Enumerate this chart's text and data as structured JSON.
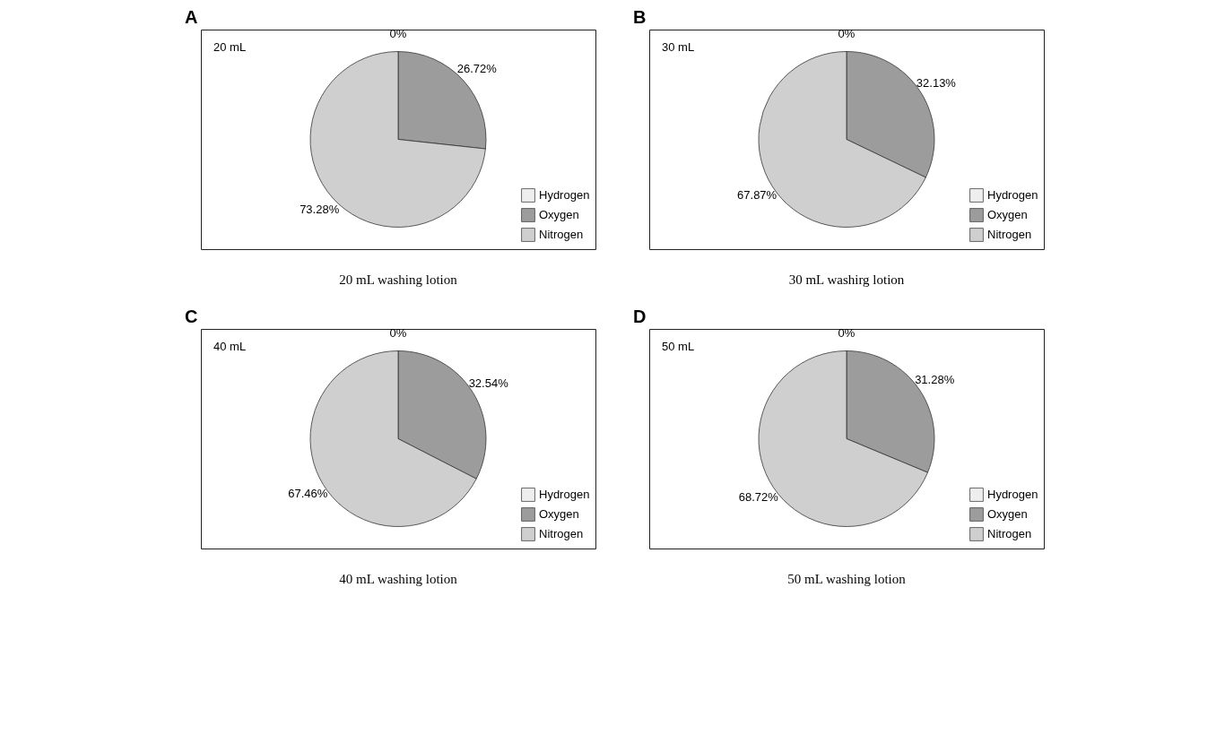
{
  "chart_data": [
    {
      "type": "pie",
      "title": "A",
      "xlabel": "20 mL washing lotion",
      "annotations": [
        "20 mL"
      ],
      "categories": [
        "Hydrogen",
        "Oxygen",
        "Nitrogen"
      ],
      "values": [
        0,
        26.72,
        73.28
      ],
      "value_labels": [
        "0%",
        "26.72%",
        "73.28%"
      ],
      "colors": [
        "#eeeeee",
        "#9c9c9c",
        "#cfcfcf"
      ],
      "legend": "bottom right"
    },
    {
      "type": "pie",
      "title": "B",
      "xlabel": "30 mL washirg lotion",
      "annotations": [
        "30 mL"
      ],
      "categories": [
        "Hydrogen",
        "Oxygen",
        "Nitrogen"
      ],
      "values": [
        0,
        32.13,
        67.87
      ],
      "value_labels": [
        "0%",
        "32.13%",
        "67.87%"
      ],
      "colors": [
        "#eeeeee",
        "#9c9c9c",
        "#cfcfcf"
      ],
      "legend": "bottom right"
    },
    {
      "type": "pie",
      "title": "C",
      "xlabel": "40 mL washing lotion",
      "annotations": [
        "40 mL"
      ],
      "categories": [
        "Hydrogen",
        "Oxygen",
        "Nitrogen"
      ],
      "values": [
        0,
        32.54,
        67.46
      ],
      "value_labels": [
        "0%",
        "32.54%",
        "67.46%"
      ],
      "colors": [
        "#eeeeee",
        "#9c9c9c",
        "#cfcfcf"
      ],
      "legend": "bottom right"
    },
    {
      "type": "pie",
      "title": "D",
      "xlabel": "50 mL washing lotion",
      "annotations": [
        "50 mL"
      ],
      "categories": [
        "Hydrogen",
        "Oxygen",
        "Nitrogen"
      ],
      "values": [
        0,
        31.28,
        68.72
      ],
      "value_labels": [
        "0%",
        "31.28%",
        "68.72%"
      ],
      "colors": [
        "#eeeeee",
        "#9c9c9c",
        "#cfcfcf"
      ],
      "legend": "bottom right"
    }
  ]
}
